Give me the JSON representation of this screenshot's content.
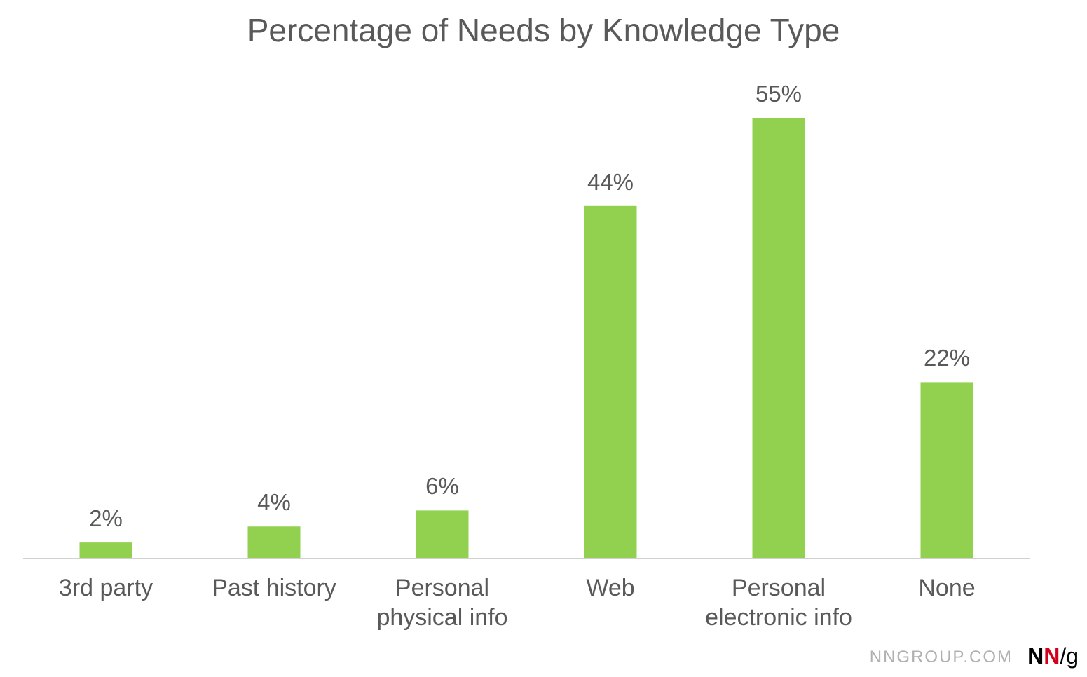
{
  "chart_data": {
    "type": "bar",
    "title": "Percentage of Needs by Knowledge Type",
    "categories": [
      "3rd party",
      "Past history",
      "Personal physical info",
      "Web",
      "Personal electronic info",
      "None"
    ],
    "values": [
      2,
      4,
      6,
      44,
      55,
      22
    ],
    "value_labels": [
      "2%",
      "4%",
      "6%",
      "44%",
      "55%",
      "22%"
    ],
    "color": "#92d050",
    "ylim": [
      0,
      55
    ]
  },
  "footer": {
    "site": "NNGROUP.COM",
    "logo": [
      "N",
      "N",
      "/g"
    ]
  }
}
